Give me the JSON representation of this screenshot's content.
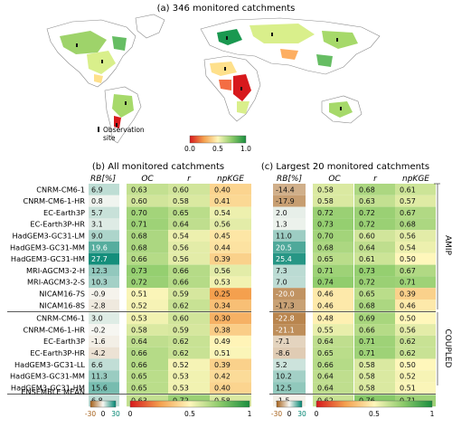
{
  "map_panel": {
    "title": "(a) 346 monitored catchments",
    "legend_label_line1": "Observation",
    "legend_label_line2": "site",
    "colorbar_ticks": [
      "0.0",
      "0.5",
      "1.0"
    ]
  },
  "chart_data": [
    {
      "type": "table",
      "title": "(b) All monitored catchments",
      "columns": [
        "RB[%]",
        "OC",
        "r",
        "npKGE"
      ],
      "groups": [
        {
          "name": "AMIP",
          "rows": [
            {
              "model": "CNRM-CM6-1",
              "values": [
                "6.9",
                "0.63",
                "0.60",
                "0.40"
              ]
            },
            {
              "model": "CNRM-CM6-1-HR",
              "values": [
                "0.8",
                "0.60",
                "0.58",
                "0.41"
              ]
            },
            {
              "model": "EC-Earth3P",
              "values": [
                "5.7",
                "0.70",
                "0.65",
                "0.54"
              ]
            },
            {
              "model": "EC-Earth3P-HR",
              "values": [
                "3.1",
                "0.71",
                "0.64",
                "0.56"
              ]
            },
            {
              "model": "HadGEM3-GC31-LM",
              "values": [
                "9.0",
                "0.68",
                "0.54",
                "0.45"
              ]
            },
            {
              "model": "HadGEM3-GC31-MM",
              "values": [
                "19.6",
                "0.68",
                "0.56",
                "0.44"
              ]
            },
            {
              "model": "HadGEM3-GC31-HM",
              "values": [
                "27.7",
                "0.66",
                "0.56",
                "0.39"
              ]
            },
            {
              "model": "MRI-AGCM3-2-H",
              "values": [
                "12.3",
                "0.73",
                "0.66",
                "0.56"
              ]
            },
            {
              "model": "MRI-AGCM3-2-S",
              "values": [
                "10.3",
                "0.72",
                "0.66",
                "0.53"
              ]
            },
            {
              "model": "NICAM16-7S",
              "values": [
                "-0.9",
                "0.51",
                "0.59",
                "0.25"
              ]
            },
            {
              "model": "NICAM16-8S",
              "values": [
                "-2.8",
                "0.52",
                "0.62",
                "0.34"
              ]
            }
          ]
        },
        {
          "name": "COUPLED",
          "rows": [
            {
              "model": "CNRM-CM6-1",
              "values": [
                "3.0",
                "0.53",
                "0.60",
                "0.30"
              ]
            },
            {
              "model": "CNRM-CM6-1-HR",
              "values": [
                "-0.2",
                "0.58",
                "0.59",
                "0.38"
              ]
            },
            {
              "model": "EC-Earth3P",
              "values": [
                "-1.6",
                "0.64",
                "0.62",
                "0.49"
              ]
            },
            {
              "model": "EC-Earth3P-HR",
              "values": [
                "-4.2",
                "0.66",
                "0.62",
                "0.51"
              ]
            },
            {
              "model": "HadGEM3-GC31-LL",
              "values": [
                "6.6",
                "0.66",
                "0.52",
                "0.39"
              ]
            },
            {
              "model": "HadGEM3-GC31-MM",
              "values": [
                "11.3",
                "0.65",
                "0.53",
                "0.42"
              ]
            },
            {
              "model": "HadGEM3-GC31-HM",
              "values": [
                "15.6",
                "0.65",
                "0.53",
                "0.40"
              ]
            }
          ]
        }
      ],
      "summary_row": {
        "model": "ENSEMBLE MEAN",
        "values": [
          "6.8",
          "0.63",
          "0.72",
          "0.58"
        ]
      },
      "colorbars": {
        "rb_ticks": [
          "-30",
          "0",
          "30"
        ],
        "metric_ticks": [
          "0",
          "0.5",
          "1"
        ]
      }
    },
    {
      "type": "table",
      "title": "(c) Largest 20 monitored catchments",
      "columns": [
        "RB[%]",
        "OC",
        "r",
        "npKGE"
      ],
      "groups": [
        {
          "name": "AMIP",
          "rows": [
            {
              "values": [
                "-14.4",
                "0.58",
                "0.68",
                "0.61"
              ]
            },
            {
              "values": [
                "-17.9",
                "0.58",
                "0.63",
                "0.57"
              ]
            },
            {
              "values": [
                "2.0",
                "0.72",
                "0.72",
                "0.67"
              ]
            },
            {
              "values": [
                "1.3",
                "0.73",
                "0.72",
                "0.68"
              ]
            },
            {
              "values": [
                "11.0",
                "0.70",
                "0.60",
                "0.56"
              ]
            },
            {
              "values": [
                "20.5",
                "0.68",
                "0.64",
                "0.54"
              ]
            },
            {
              "values": [
                "25.4",
                "0.65",
                "0.61",
                "0.50"
              ]
            },
            {
              "values": [
                "7.3",
                "0.71",
                "0.73",
                "0.67"
              ]
            },
            {
              "values": [
                "7.0",
                "0.74",
                "0.72",
                "0.71"
              ]
            },
            {
              "values": [
                "-20.0",
                "0.46",
                "0.65",
                "0.39"
              ]
            },
            {
              "values": [
                "-17.3",
                "0.46",
                "0.68",
                "0.46"
              ]
            }
          ]
        },
        {
          "name": "COUPLED",
          "rows": [
            {
              "values": [
                "-22.8",
                "0.48",
                "0.69",
                "0.50"
              ]
            },
            {
              "values": [
                "-21.1",
                "0.55",
                "0.66",
                "0.56"
              ]
            },
            {
              "values": [
                "-7.1",
                "0.64",
                "0.71",
                "0.62"
              ]
            },
            {
              "values": [
                "-8.6",
                "0.65",
                "0.71",
                "0.62"
              ]
            },
            {
              "values": [
                "5.2",
                "0.66",
                "0.58",
                "0.50"
              ]
            },
            {
              "values": [
                "10.2",
                "0.64",
                "0.58",
                "0.52"
              ]
            },
            {
              "values": [
                "12.5",
                "0.64",
                "0.58",
                "0.51"
              ]
            }
          ]
        }
      ],
      "summary_row": {
        "values": [
          "-1.5",
          "0.62",
          "0.76",
          "0.71"
        ]
      },
      "colorbars": {
        "rb_ticks": [
          "-30",
          "0",
          "30"
        ],
        "metric_ticks": [
          "0",
          "0.5",
          "1"
        ]
      }
    }
  ]
}
